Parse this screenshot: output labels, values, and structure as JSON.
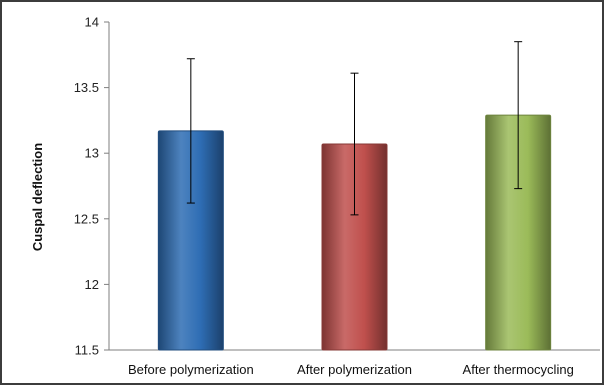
{
  "chart_data": {
    "type": "bar",
    "title": "",
    "xlabel": "",
    "ylabel": "Cuspal deflection",
    "ylim": [
      11.5,
      14
    ],
    "yticks": [
      11.5,
      12,
      12.5,
      13,
      13.5,
      14
    ],
    "grid": false,
    "legend": "none",
    "categories": [
      "Before polymerization",
      "After polymerization",
      "After thermocycling"
    ],
    "values": [
      13.17,
      13.07,
      13.29
    ],
    "error": [
      0.55,
      0.54,
      0.56
    ],
    "colors": [
      "#2e6db4",
      "#c0504d",
      "#9bbb59"
    ]
  }
}
